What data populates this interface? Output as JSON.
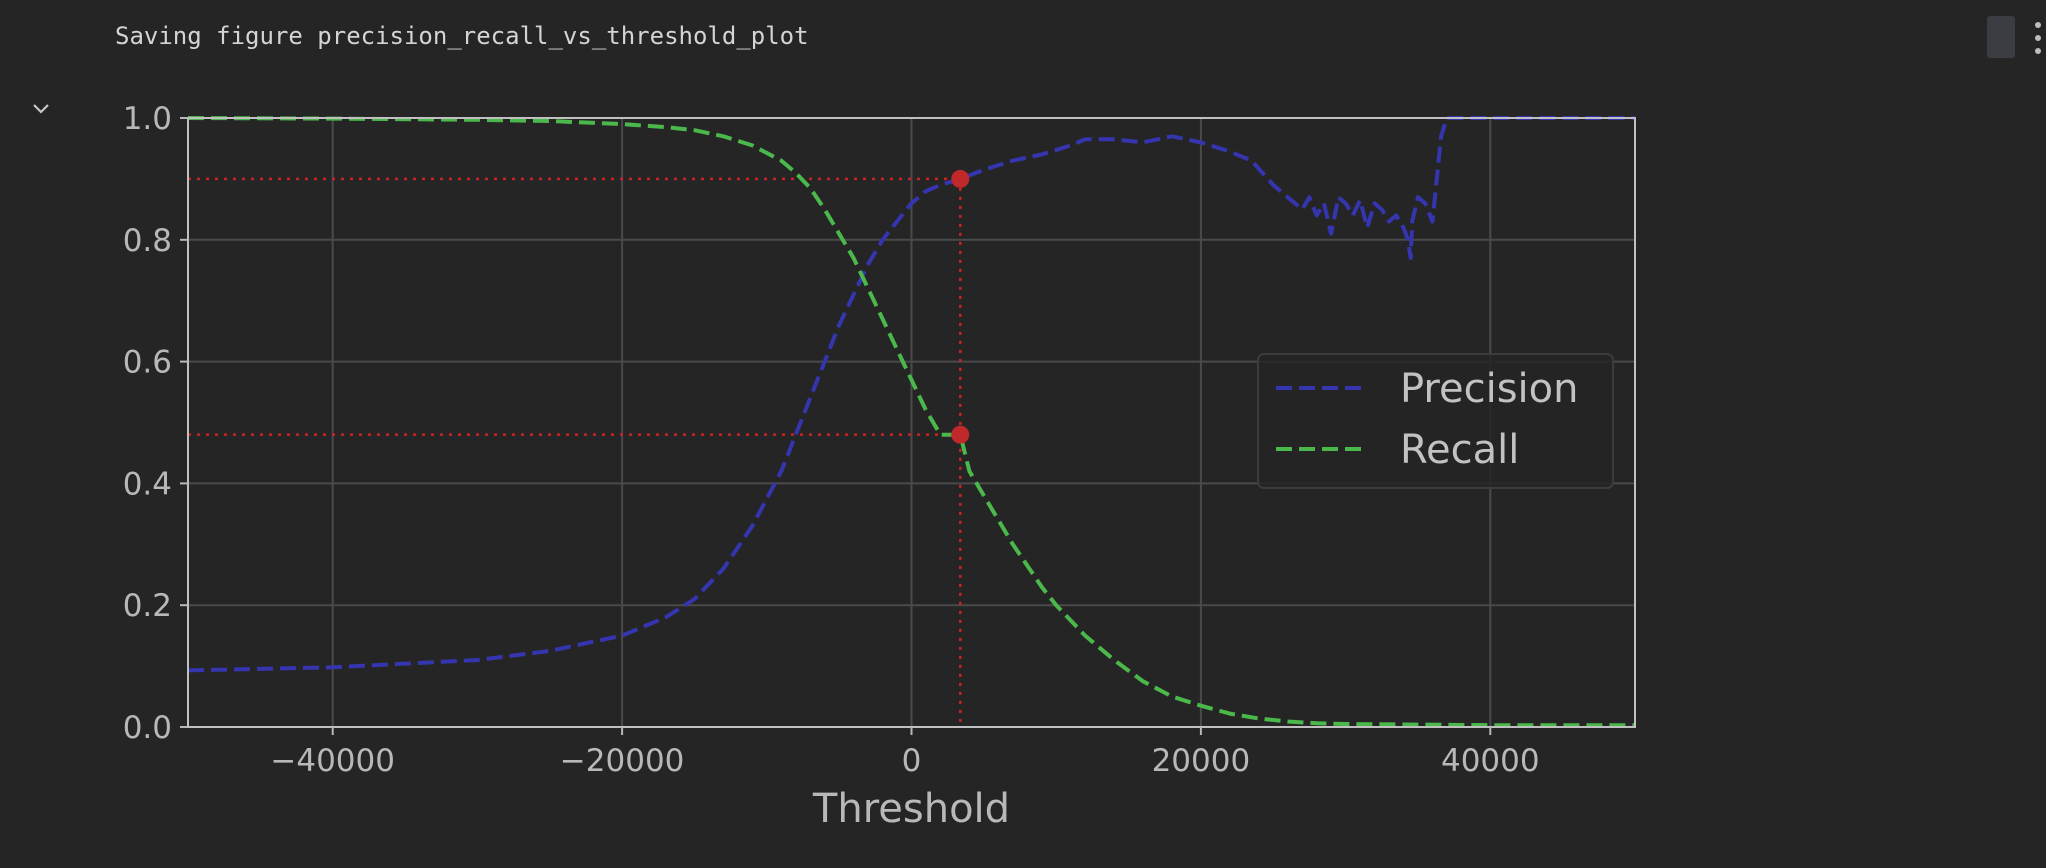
{
  "output": {
    "text": "Saving figure precision_recall_vs_threshold_plot"
  },
  "toolbar": {
    "toggle_icon": "chevron-down-icon",
    "menu_icon": "more-vertical-icon"
  },
  "chart_data": {
    "type": "line",
    "title": "",
    "xlabel": "Threshold",
    "ylabel": "",
    "xlim": [
      -50000,
      50000
    ],
    "ylim": [
      0,
      1
    ],
    "xticks": [
      -40000,
      -20000,
      0,
      20000,
      40000
    ],
    "xtick_labels": [
      "−40000",
      "−20000",
      "0",
      "20000",
      "40000"
    ],
    "yticks": [
      0.0,
      0.2,
      0.4,
      0.6,
      0.8,
      1.0
    ],
    "ytick_labels": [
      "0.0",
      "0.2",
      "0.4",
      "0.6",
      "0.8",
      "1.0"
    ],
    "grid": true,
    "legend_position": "center-right",
    "background": "#252526",
    "series": [
      {
        "name": "Precision",
        "color": "#3535b0",
        "style": "dashed",
        "x": [
          -50000,
          -40000,
          -30000,
          -25000,
          -20000,
          -17000,
          -15000,
          -13000,
          -11000,
          -9000,
          -8000,
          -7000,
          -6000,
          -5000,
          -4000,
          -3000,
          -2000,
          -1000,
          0,
          1000,
          2000,
          3370,
          5000,
          7000,
          9000,
          11000,
          12000,
          14000,
          16000,
          18000,
          20000,
          22000,
          23500,
          25000,
          26000,
          27000,
          27500,
          28000,
          28500,
          29000,
          29500,
          30000,
          30500,
          31000,
          31500,
          32000,
          32500,
          33000,
          33500,
          34000,
          34300,
          34500,
          34600,
          35000,
          35500,
          36000,
          36300,
          36600,
          37000,
          38000,
          40000,
          45000,
          50000
        ],
        "y": [
          0.093,
          0.098,
          0.11,
          0.125,
          0.15,
          0.18,
          0.21,
          0.26,
          0.33,
          0.42,
          0.48,
          0.54,
          0.6,
          0.66,
          0.71,
          0.76,
          0.8,
          0.83,
          0.86,
          0.88,
          0.89,
          0.9,
          0.915,
          0.93,
          0.94,
          0.955,
          0.965,
          0.965,
          0.96,
          0.97,
          0.96,
          0.945,
          0.93,
          0.89,
          0.87,
          0.85,
          0.87,
          0.84,
          0.86,
          0.81,
          0.87,
          0.86,
          0.84,
          0.865,
          0.82,
          0.86,
          0.85,
          0.83,
          0.84,
          0.82,
          0.8,
          0.77,
          0.83,
          0.87,
          0.86,
          0.83,
          0.9,
          0.97,
          1.0,
          1.0,
          1.0,
          1.0,
          1.0
        ]
      },
      {
        "name": "Recall",
        "color": "#4bb84b",
        "style": "dashed",
        "x": [
          -50000,
          -40000,
          -30000,
          -25000,
          -20000,
          -17000,
          -15000,
          -13000,
          -11000,
          -9000,
          -8000,
          -7000,
          -6000,
          -5000,
          -4000,
          -3000,
          -2000,
          -1000,
          0,
          1000,
          2000,
          3370,
          4000,
          5000,
          6000,
          7000,
          8000,
          9000,
          10000,
          12000,
          14000,
          16000,
          18000,
          20000,
          22000,
          24000,
          26000,
          28000,
          30000,
          35000,
          40000,
          45000,
          50000
        ],
        "y": [
          1.0,
          0.999,
          0.997,
          0.995,
          0.99,
          0.985,
          0.98,
          0.97,
          0.955,
          0.93,
          0.91,
          0.885,
          0.85,
          0.81,
          0.77,
          0.72,
          0.67,
          0.62,
          0.57,
          0.52,
          0.48,
          0.48,
          0.42,
          0.38,
          0.34,
          0.3,
          0.265,
          0.23,
          0.2,
          0.15,
          0.11,
          0.075,
          0.05,
          0.035,
          0.022,
          0.014,
          0.009,
          0.006,
          0.005,
          0.004,
          0.003,
          0.003,
          0.003
        ]
      }
    ],
    "reference_lines": {
      "color": "#cc2222",
      "style": "dotted",
      "threshold": 3370,
      "precision": 0.9,
      "recall": 0.48
    }
  }
}
